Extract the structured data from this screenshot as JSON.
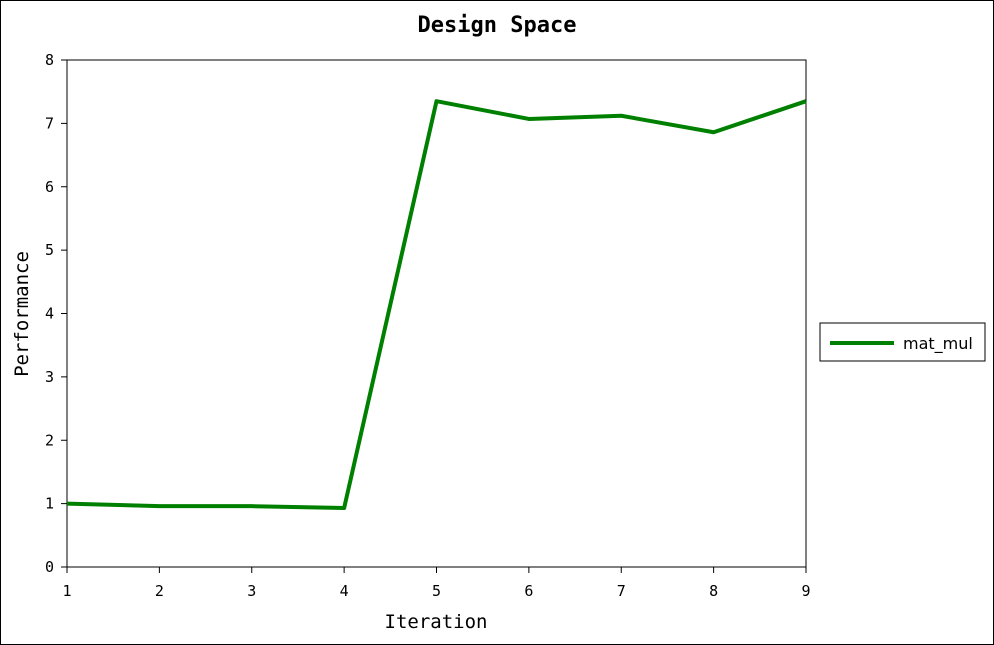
{
  "chart_data": {
    "type": "line",
    "title": "Design Space",
    "xlabel": "Iteration",
    "ylabel": "Performance",
    "xlim": [
      1,
      9
    ],
    "ylim": [
      0,
      8
    ],
    "x_ticks": [
      1,
      2,
      3,
      4,
      5,
      6,
      7,
      8,
      9
    ],
    "y_ticks": [
      0,
      1,
      2,
      3,
      4,
      5,
      6,
      7,
      8
    ],
    "grid": false,
    "legend_position": "right",
    "series": [
      {
        "name": "mat_mul",
        "color": "#008000",
        "x": [
          1,
          2,
          3,
          4,
          5,
          6,
          7,
          8,
          9
        ],
        "y": [
          1.0,
          0.96,
          0.96,
          0.93,
          7.35,
          7.07,
          7.12,
          6.86,
          7.35
        ]
      }
    ]
  }
}
